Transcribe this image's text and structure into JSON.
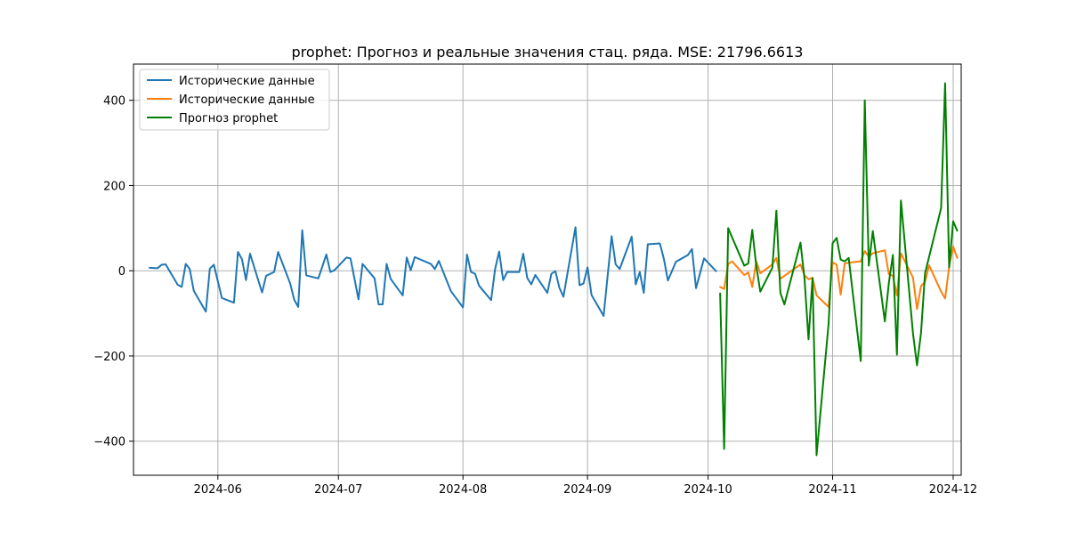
{
  "chart_data": {
    "type": "line",
    "title": "prophet: Прогноз и реальные значения стац. ряда. MSE: 21796.6613",
    "xlabel": "",
    "ylabel": "",
    "x_axis": "date",
    "xlim": [
      "2024-05-11",
      "2024-12-03"
    ],
    "ylim": [
      -480,
      485
    ],
    "grid": true,
    "legend_position": "top-left",
    "x_ticks": [
      {
        "date": "2024-06-01",
        "label": "2024-06"
      },
      {
        "date": "2024-07-01",
        "label": "2024-07"
      },
      {
        "date": "2024-08-01",
        "label": "2024-08"
      },
      {
        "date": "2024-09-01",
        "label": "2024-09"
      },
      {
        "date": "2024-10-01",
        "label": "2024-10"
      },
      {
        "date": "2024-11-01",
        "label": "2024-11"
      },
      {
        "date": "2024-12-01",
        "label": "2024-12"
      }
    ],
    "y_ticks": [
      {
        "value": -400,
        "label": "−400"
      },
      {
        "value": -200,
        "label": "−200"
      },
      {
        "value": 0,
        "label": "0"
      },
      {
        "value": 200,
        "label": "200"
      },
      {
        "value": 400,
        "label": "400"
      }
    ],
    "series": [
      {
        "name": "Исторические данные",
        "color": "#1f77b4",
        "points": [
          [
            "2024-05-15",
            7
          ],
          [
            "2024-05-17",
            6
          ],
          [
            "2024-05-18",
            14
          ],
          [
            "2024-05-19",
            15
          ],
          [
            "2024-05-22",
            -33
          ],
          [
            "2024-05-23",
            -38
          ],
          [
            "2024-05-24",
            16
          ],
          [
            "2024-05-25",
            4
          ],
          [
            "2024-05-26",
            -47
          ],
          [
            "2024-05-29",
            -96
          ],
          [
            "2024-05-30",
            5
          ],
          [
            "2024-05-31",
            14
          ],
          [
            "2024-06-02",
            -64
          ],
          [
            "2024-06-05",
            -75
          ],
          [
            "2024-06-06",
            44
          ],
          [
            "2024-06-07",
            27
          ],
          [
            "2024-06-08",
            -22
          ],
          [
            "2024-06-09",
            40
          ],
          [
            "2024-06-12",
            -51
          ],
          [
            "2024-06-13",
            -12
          ],
          [
            "2024-06-15",
            -3
          ],
          [
            "2024-06-16",
            44
          ],
          [
            "2024-06-19",
            -30
          ],
          [
            "2024-06-20",
            -68
          ],
          [
            "2024-06-21",
            -85
          ],
          [
            "2024-06-22",
            95
          ],
          [
            "2024-06-23",
            -11
          ],
          [
            "2024-06-26",
            -18
          ],
          [
            "2024-06-28",
            38
          ],
          [
            "2024-06-29",
            -3
          ],
          [
            "2024-06-30",
            1
          ],
          [
            "2024-07-03",
            31
          ],
          [
            "2024-07-04",
            29
          ],
          [
            "2024-07-06",
            -67
          ],
          [
            "2024-07-07",
            16
          ],
          [
            "2024-07-10",
            -18
          ],
          [
            "2024-07-11",
            -79
          ],
          [
            "2024-07-12",
            -79
          ],
          [
            "2024-07-13",
            16
          ],
          [
            "2024-07-14",
            -19
          ],
          [
            "2024-07-17",
            -58
          ],
          [
            "2024-07-18",
            31
          ],
          [
            "2024-07-19",
            1
          ],
          [
            "2024-07-20",
            32
          ],
          [
            "2024-07-24",
            16
          ],
          [
            "2024-07-25",
            4
          ],
          [
            "2024-07-26",
            23
          ],
          [
            "2024-07-29",
            -48
          ],
          [
            "2024-08-01",
            -86
          ],
          [
            "2024-08-02",
            38
          ],
          [
            "2024-08-03",
            -3
          ],
          [
            "2024-08-04",
            -7
          ],
          [
            "2024-08-05",
            -35
          ],
          [
            "2024-08-08",
            -69
          ],
          [
            "2024-08-09",
            4
          ],
          [
            "2024-08-10",
            45
          ],
          [
            "2024-08-11",
            -22
          ],
          [
            "2024-08-12",
            -3
          ],
          [
            "2024-08-15",
            -3
          ],
          [
            "2024-08-16",
            40
          ],
          [
            "2024-08-17",
            -17
          ],
          [
            "2024-08-18",
            -32
          ],
          [
            "2024-08-19",
            -10
          ],
          [
            "2024-08-22",
            -52
          ],
          [
            "2024-08-23",
            -7
          ],
          [
            "2024-08-24",
            -1
          ],
          [
            "2024-08-25",
            -40
          ],
          [
            "2024-08-26",
            -61
          ],
          [
            "2024-08-29",
            102
          ],
          [
            "2024-08-30",
            -34
          ],
          [
            "2024-08-31",
            -30
          ],
          [
            "2024-09-01",
            8
          ],
          [
            "2024-09-02",
            -57
          ],
          [
            "2024-09-05",
            -106
          ],
          [
            "2024-09-07",
            81
          ],
          [
            "2024-09-08",
            15
          ],
          [
            "2024-09-09",
            4
          ],
          [
            "2024-09-12",
            80
          ],
          [
            "2024-09-13",
            -32
          ],
          [
            "2024-09-14",
            -3
          ],
          [
            "2024-09-15",
            -52
          ],
          [
            "2024-09-16",
            62
          ],
          [
            "2024-09-19",
            64
          ],
          [
            "2024-09-20",
            28
          ],
          [
            "2024-09-21",
            -23
          ],
          [
            "2024-09-23",
            21
          ],
          [
            "2024-09-26",
            37
          ],
          [
            "2024-09-27",
            51
          ],
          [
            "2024-09-28",
            -41
          ],
          [
            "2024-09-30",
            29
          ],
          [
            "2024-10-03",
            -1
          ]
        ]
      },
      {
        "name": "Исторические данные",
        "color": "#ff7f0e",
        "points": [
          [
            "2024-10-04",
            -38
          ],
          [
            "2024-10-05",
            -43
          ],
          [
            "2024-10-06",
            16
          ],
          [
            "2024-10-07",
            22
          ],
          [
            "2024-10-10",
            -10
          ],
          [
            "2024-10-11",
            -4
          ],
          [
            "2024-10-12",
            -38
          ],
          [
            "2024-10-13",
            22
          ],
          [
            "2024-10-14",
            -6
          ],
          [
            "2024-10-17",
            15
          ],
          [
            "2024-10-18",
            30
          ],
          [
            "2024-10-19",
            -19
          ],
          [
            "2024-10-20",
            -12
          ],
          [
            "2024-10-24",
            15
          ],
          [
            "2024-10-25",
            -11
          ],
          [
            "2024-10-26",
            -20
          ],
          [
            "2024-10-27",
            -16
          ],
          [
            "2024-10-28",
            -58
          ],
          [
            "2024-10-31",
            -85
          ],
          [
            "2024-11-01",
            20
          ],
          [
            "2024-11-02",
            14
          ],
          [
            "2024-11-03",
            -56
          ],
          [
            "2024-11-04",
            17
          ],
          [
            "2024-11-05",
            19
          ],
          [
            "2024-11-08",
            22
          ],
          [
            "2024-11-09",
            46
          ],
          [
            "2024-11-10",
            33
          ],
          [
            "2024-11-11",
            41
          ],
          [
            "2024-11-14",
            48
          ],
          [
            "2024-11-15",
            -8
          ],
          [
            "2024-11-16",
            -12
          ],
          [
            "2024-11-17",
            -58
          ],
          [
            "2024-11-18",
            41
          ],
          [
            "2024-11-21",
            -16
          ],
          [
            "2024-11-22",
            -90
          ],
          [
            "2024-11-23",
            -36
          ],
          [
            "2024-11-24",
            -26
          ],
          [
            "2024-11-25",
            13
          ],
          [
            "2024-11-28",
            -49
          ],
          [
            "2024-11-29",
            -65
          ],
          [
            "2024-11-30",
            10
          ],
          [
            "2024-12-01",
            57
          ],
          [
            "2024-12-02",
            30
          ]
        ]
      },
      {
        "name": "Прогноз prophet",
        "color": "#008000",
        "points": [
          [
            "2024-10-04",
            -53
          ],
          [
            "2024-10-05",
            -418
          ],
          [
            "2024-10-06",
            100
          ],
          [
            "2024-10-07",
            78
          ],
          [
            "2024-10-10",
            12
          ],
          [
            "2024-10-11",
            17
          ],
          [
            "2024-10-12",
            96
          ],
          [
            "2024-10-13",
            11
          ],
          [
            "2024-10-14",
            -49
          ],
          [
            "2024-10-17",
            7
          ],
          [
            "2024-10-18",
            141
          ],
          [
            "2024-10-19",
            -52
          ],
          [
            "2024-10-20",
            -79
          ],
          [
            "2024-10-24",
            66
          ],
          [
            "2024-10-25",
            -18
          ],
          [
            "2024-10-26",
            -161
          ],
          [
            "2024-10-27",
            -18
          ],
          [
            "2024-10-28",
            -433
          ],
          [
            "2024-10-31",
            -124
          ],
          [
            "2024-11-01",
            65
          ],
          [
            "2024-11-02",
            77
          ],
          [
            "2024-11-03",
            26
          ],
          [
            "2024-11-04",
            22
          ],
          [
            "2024-11-05",
            30
          ],
          [
            "2024-11-08",
            -212
          ],
          [
            "2024-11-09",
            400
          ],
          [
            "2024-11-10",
            12
          ],
          [
            "2024-11-11",
            93
          ],
          [
            "2024-11-14",
            -119
          ],
          [
            "2024-11-15",
            -28
          ],
          [
            "2024-11-16",
            37
          ],
          [
            "2024-11-17",
            -197
          ],
          [
            "2024-11-18",
            165
          ],
          [
            "2024-11-21",
            -147
          ],
          [
            "2024-11-22",
            -222
          ],
          [
            "2024-11-23",
            -146
          ],
          [
            "2024-11-24",
            -6
          ],
          [
            "2024-11-28",
            147
          ],
          [
            "2024-11-29",
            440
          ],
          [
            "2024-11-30",
            8
          ],
          [
            "2024-12-01",
            116
          ],
          [
            "2024-12-02",
            94
          ]
        ]
      }
    ]
  }
}
